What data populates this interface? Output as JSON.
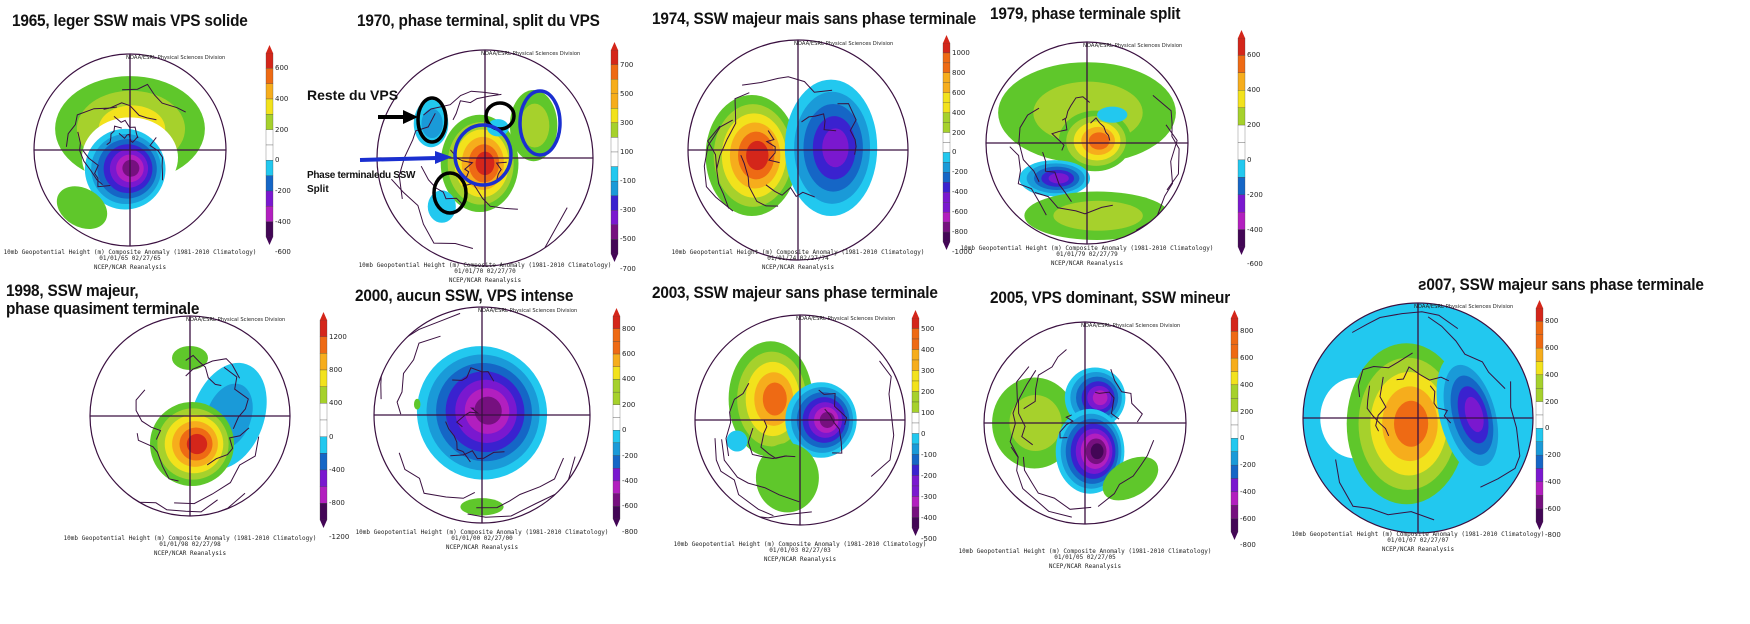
{
  "common": {
    "header": "NOAA/ESRL Physical Sciences Division",
    "caption": "10mb Geopotential Height (m) Composite Anomaly (1981-2010 Climatology)",
    "source": "NCEP/NCAR Reanalysis"
  },
  "palette": {
    "negative": [
      "#22c8ef",
      "#1a9ad8",
      "#1566c6",
      "#3a22cf",
      "#7a18cf",
      "#b21fbf",
      "#76107f",
      "#430656"
    ],
    "positive": [
      "#5fc72b",
      "#a6d12c",
      "#f2e21c",
      "#f6ad1c",
      "#ee6a14",
      "#d4261a"
    ],
    "zero": "#ffffff",
    "annotation_black": "#000000",
    "annotation_blue": "#1a2fd0"
  },
  "panels": [
    {
      "title": "1965, leger SSW mais VPS solide",
      "dates": "01/01/65 02/27/65",
      "colorbar": [
        "600",
        "400",
        "200",
        "0",
        "-200",
        "-400",
        "-600"
      ]
    },
    {
      "title": "1970, phase terminal, split du VPS",
      "dates": "01/01/70 02/27/70",
      "colorbar": [
        "700",
        "500",
        "300",
        "100",
        "-100",
        "-300",
        "-500",
        "-700"
      ]
    },
    {
      "title": "1974, SSW majeur mais sans phase terminale",
      "dates": "01/01/74 02/27/74",
      "colorbar": [
        "1000",
        "800",
        "600",
        "400",
        "200",
        "0",
        "-200",
        "-400",
        "-600",
        "-800",
        "-1000"
      ]
    },
    {
      "title": "1979, phase terminale split",
      "dates": "01/01/79 02/27/79",
      "colorbar": [
        "600",
        "400",
        "200",
        "0",
        "-200",
        "-400",
        "-600"
      ]
    },
    {
      "title": "1998, SSW majeur,",
      "title2": "phase quasiment terminale",
      "dates": "01/01/98 02/27/98",
      "colorbar": [
        "1200",
        "800",
        "400",
        "0",
        "-400",
        "-800",
        "-1200"
      ]
    },
    {
      "title": "2000, aucun SSW, VPS intense",
      "dates": "01/01/00 02/27/00",
      "colorbar": [
        "800",
        "600",
        "400",
        "200",
        "0",
        "-200",
        "-400",
        "-600",
        "-800"
      ]
    },
    {
      "title": "2003, SSW majeur sans phase terminale",
      "dates": "01/01/03 02/27/03",
      "colorbar": [
        "500",
        "400",
        "300",
        "200",
        "100",
        "0",
        "-100",
        "-200",
        "-300",
        "-400",
        "-500"
      ]
    },
    {
      "title": "2005, VPS dominant, SSW mineur",
      "dates": "01/01/05 02/27/05",
      "colorbar": [
        "800",
        "600",
        "400",
        "200",
        "0",
        "-200",
        "-400",
        "-600",
        "-800"
      ]
    },
    {
      "title": "ƨ007, SSW majeur sans phase terminale",
      "dates": "01/01/07 02/27/07",
      "colorbar": [
        "800",
        "600",
        "400",
        "200",
        "0",
        "-200",
        "-400",
        "-600",
        "-800"
      ]
    }
  ],
  "annotations": {
    "reste_label": "Reste du VPS",
    "phase_label": "Phase terminaledu SSW",
    "split_label": "Split"
  }
}
